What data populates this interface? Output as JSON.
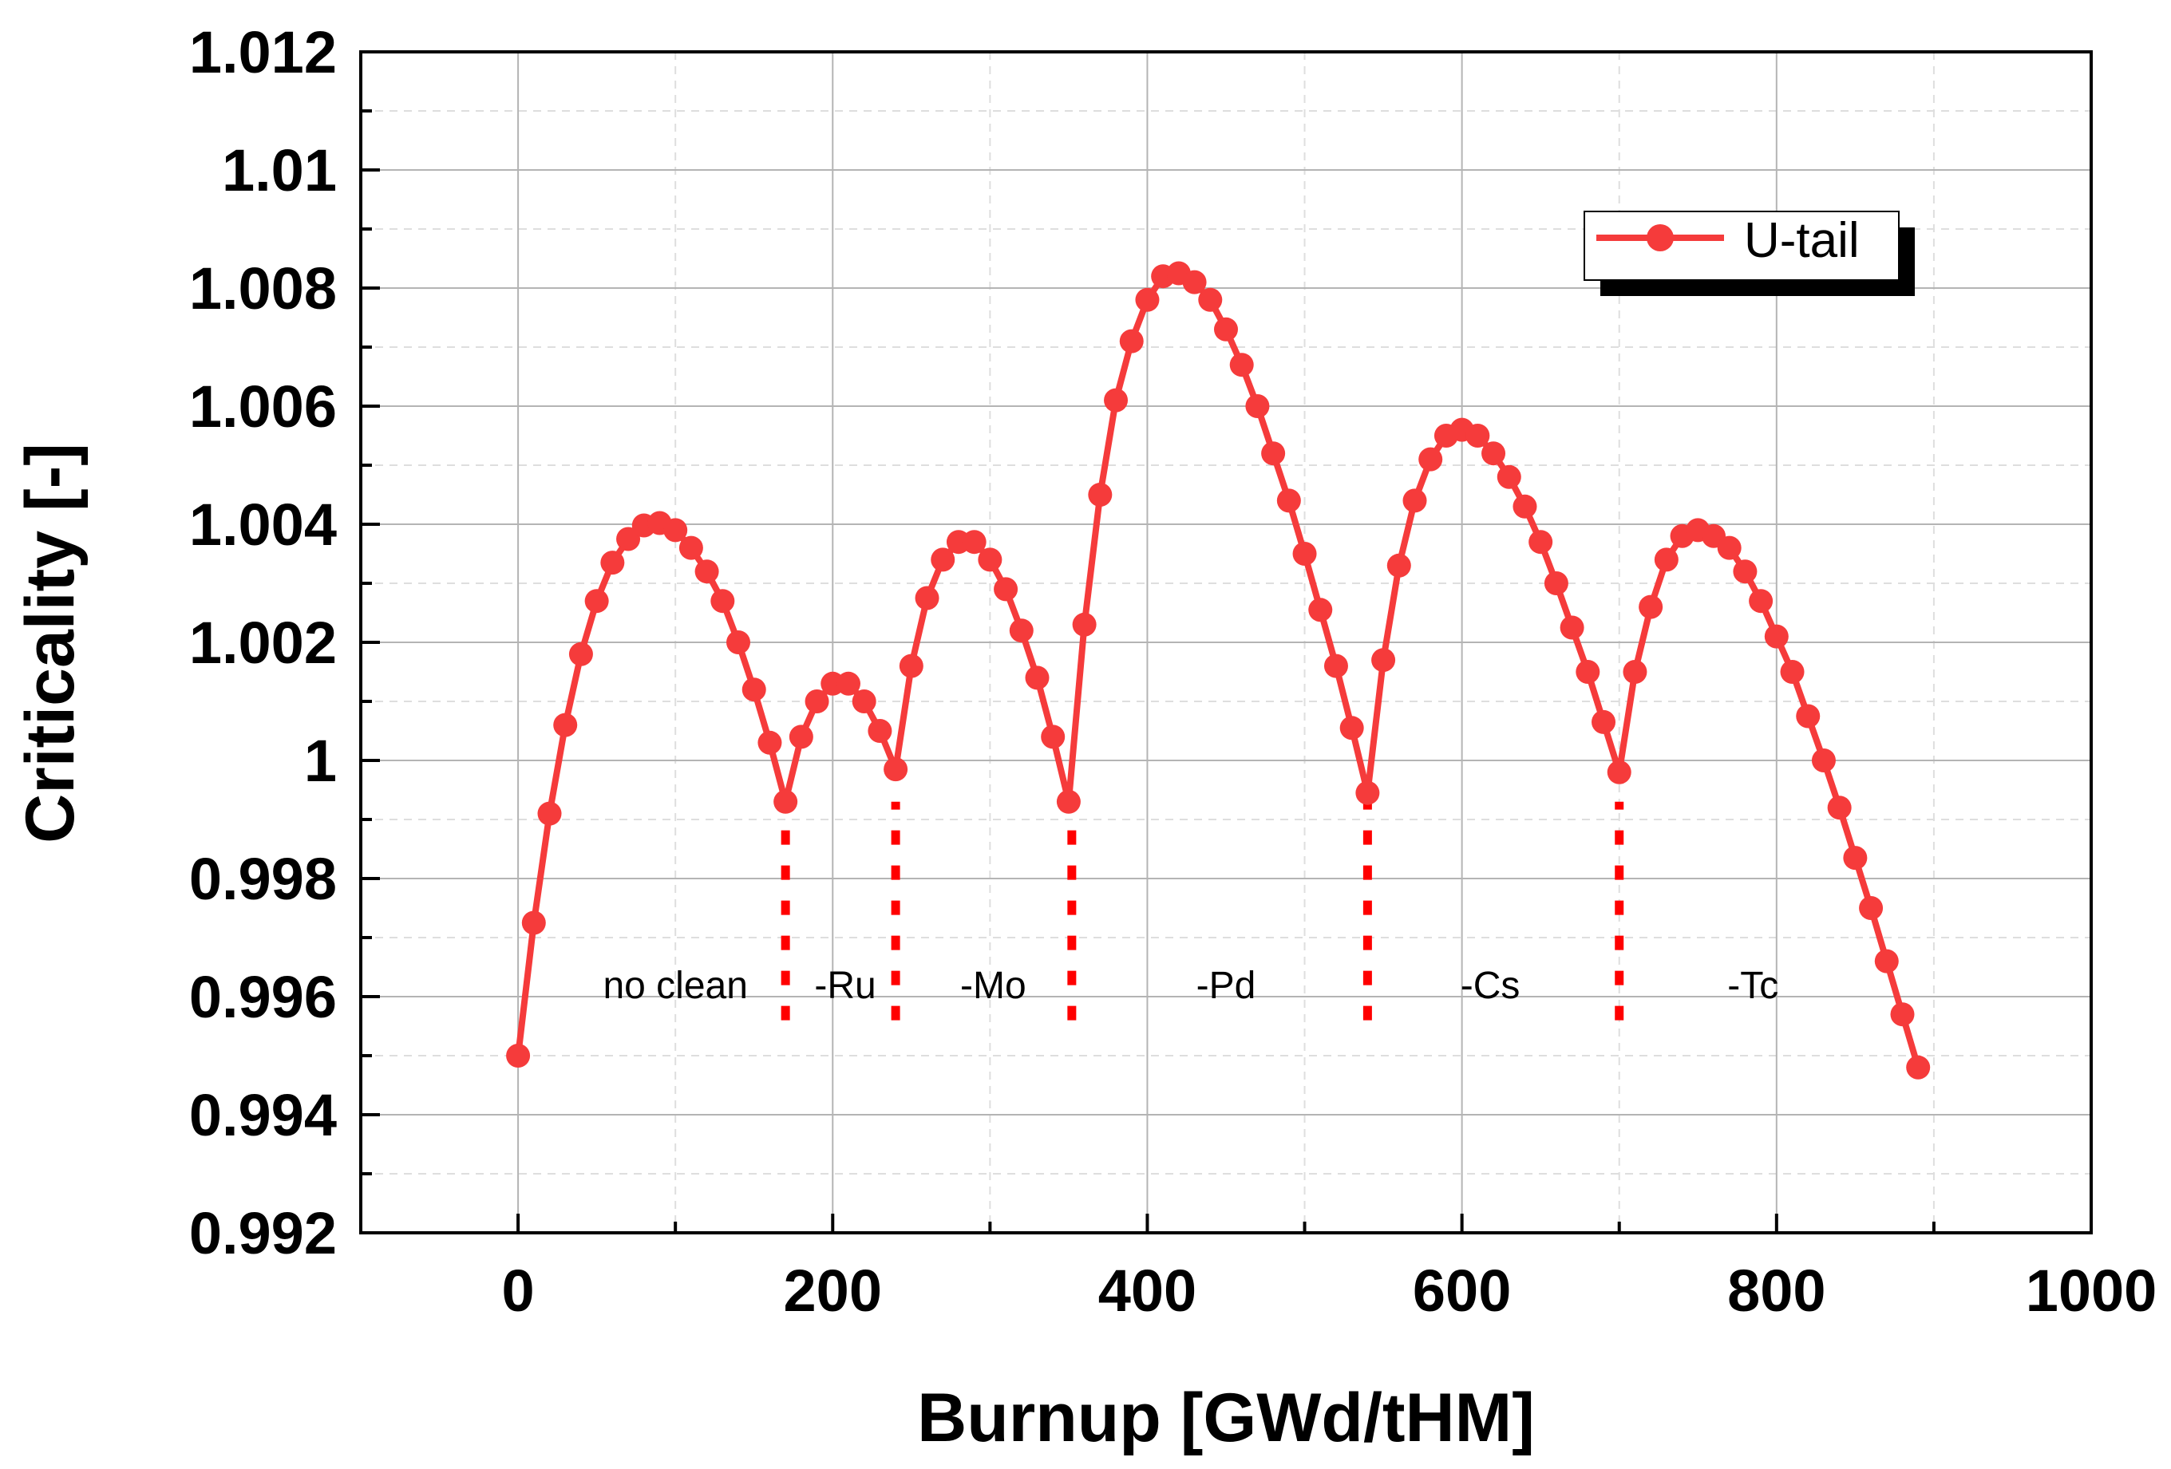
{
  "chart_data": {
    "type": "line",
    "title": "",
    "xlabel": "Burnup [GWd/tHM]",
    "ylabel": "Criticality [-]",
    "xlim": [
      -100,
      1000
    ],
    "ylim": [
      0.992,
      1.012
    ],
    "x_ticks": [
      0,
      200,
      400,
      600,
      800,
      1000
    ],
    "y_ticks": [
      0.992,
      0.994,
      0.996,
      0.998,
      1.0,
      1.002,
      1.004,
      1.006,
      1.008,
      1.01,
      1.012
    ],
    "x_tick_labels": [
      "0",
      "200",
      "400",
      "600",
      "800",
      "1000"
    ],
    "y_tick_labels": [
      "0.992",
      "0.994",
      "0.996",
      "0.998",
      "1",
      "1.002",
      "1.004",
      "1.006",
      "1.008",
      "1.01",
      "1.012"
    ],
    "grid": true,
    "legend_position": "top-right",
    "colors": {
      "series": "#f53b3b",
      "divider": "#ff0000",
      "grid_major": "#b4b4b4",
      "grid_minor": "#dedede"
    },
    "series": [
      {
        "name": "U-tail",
        "x": [
          0,
          10,
          20,
          30,
          40,
          50,
          60,
          70,
          80,
          90,
          100,
          110,
          120,
          130,
          140,
          150,
          160,
          170,
          180,
          190,
          200,
          210,
          220,
          230,
          240,
          250,
          260,
          270,
          280,
          290,
          300,
          310,
          320,
          330,
          340,
          350,
          360,
          370,
          380,
          390,
          400,
          410,
          420,
          430,
          440,
          450,
          460,
          470,
          480,
          490,
          500,
          510,
          520,
          530,
          540,
          550,
          560,
          570,
          580,
          590,
          600,
          610,
          620,
          630,
          640,
          650,
          660,
          670,
          680,
          690,
          700,
          710,
          720,
          730,
          740,
          750,
          760,
          770,
          780,
          790,
          800,
          810,
          820,
          830,
          840,
          850,
          860,
          870,
          880,
          890
        ],
        "y": [
          0.995,
          0.99725,
          0.9991,
          1.0006,
          1.0018,
          1.0027,
          1.00335,
          1.00375,
          1.00398,
          1.00402,
          1.0039,
          1.0036,
          1.0032,
          1.0027,
          1.002,
          1.0012,
          1.0003,
          0.9993,
          1.0004,
          1.001,
          1.0013,
          1.0013,
          1.001,
          1.0005,
          0.99985,
          1.0016,
          1.00275,
          1.0034,
          1.0037,
          1.0037,
          1.0034,
          1.0029,
          1.0022,
          1.0014,
          1.0004,
          0.9993,
          1.0023,
          1.0045,
          1.0061,
          1.0071,
          1.0078,
          1.0082,
          1.00825,
          1.0081,
          1.0078,
          1.0073,
          1.0067,
          1.006,
          1.0052,
          1.0044,
          1.0035,
          1.00255,
          1.0016,
          1.00055,
          0.99945,
          1.0017,
          1.0033,
          1.0044,
          1.0051,
          1.0055,
          1.0056,
          1.0055,
          1.0052,
          1.0048,
          1.0043,
          1.0037,
          1.003,
          1.00225,
          1.0015,
          1.00065,
          0.9998,
          1.0015,
          1.0026,
          1.0034,
          1.0038,
          1.0039,
          1.0038,
          1.0036,
          1.0032,
          1.0027,
          1.0021,
          1.0015,
          1.00075,
          1.0,
          0.9992,
          0.99835,
          0.9975,
          0.9966,
          0.9957,
          0.9948
        ]
      }
    ],
    "dividers_x": [
      170,
      240,
      352,
      540,
      700
    ],
    "divider_y_range": [
      0.9956,
      0.9993
    ],
    "region_labels": [
      {
        "text": "no clean",
        "x": 100
      },
      {
        "text": "-Ru",
        "x": 208
      },
      {
        "text": "-Mo",
        "x": 302
      },
      {
        "text": "-Pd",
        "x": 450
      },
      {
        "text": "-Cs",
        "x": 618
      },
      {
        "text": "-Tc",
        "x": 785
      }
    ],
    "region_label_y": 0.9962
  }
}
